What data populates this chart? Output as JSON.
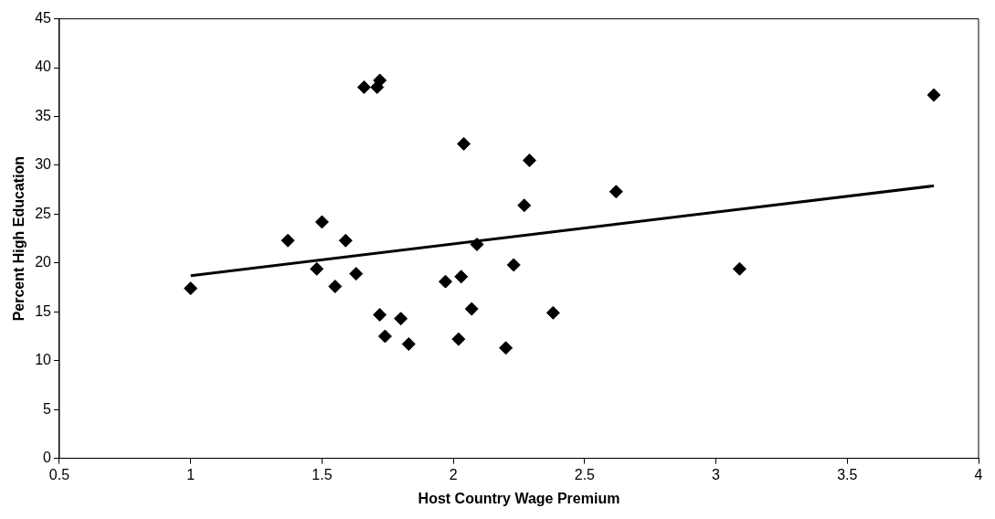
{
  "chart_data": {
    "type": "scatter",
    "xlabel": "Host Country Wage Premium",
    "ylabel": "Percent High Education",
    "xlim": [
      0.5,
      4
    ],
    "xticks": [
      0.5,
      1,
      1.5,
      2,
      2.5,
      3,
      3.5,
      4
    ],
    "ylim": [
      0,
      45
    ],
    "yticks": [
      0,
      5,
      10,
      15,
      20,
      25,
      30,
      35,
      40,
      45
    ],
    "grid": false,
    "legend": false,
    "marker": "diamond",
    "series": [
      {
        "type": "scatter",
        "color": "#000000",
        "x": [
          1.0,
          1.37,
          1.48,
          1.5,
          1.55,
          1.59,
          1.63,
          1.66,
          1.71,
          1.72,
          1.72,
          1.74,
          1.8,
          1.83,
          1.97,
          2.02,
          2.03,
          2.04,
          2.07,
          2.09,
          2.2,
          2.23,
          2.27,
          2.29,
          2.38,
          2.62,
          3.09,
          3.83
        ],
        "values": [
          17.4,
          22.3,
          19.4,
          24.2,
          17.6,
          22.3,
          18.9,
          38.0,
          38.0,
          14.7,
          38.7,
          12.5,
          14.3,
          11.7,
          18.1,
          12.2,
          18.6,
          32.2,
          15.3,
          21.9,
          11.3,
          19.8,
          25.9,
          30.5,
          14.9,
          27.3,
          19.4,
          37.2
        ]
      },
      {
        "type": "line",
        "color": "#000000",
        "marker": "none",
        "line_style": "solid",
        "x": [
          1.0,
          3.83
        ],
        "values": [
          18.7,
          27.9
        ]
      }
    ]
  }
}
